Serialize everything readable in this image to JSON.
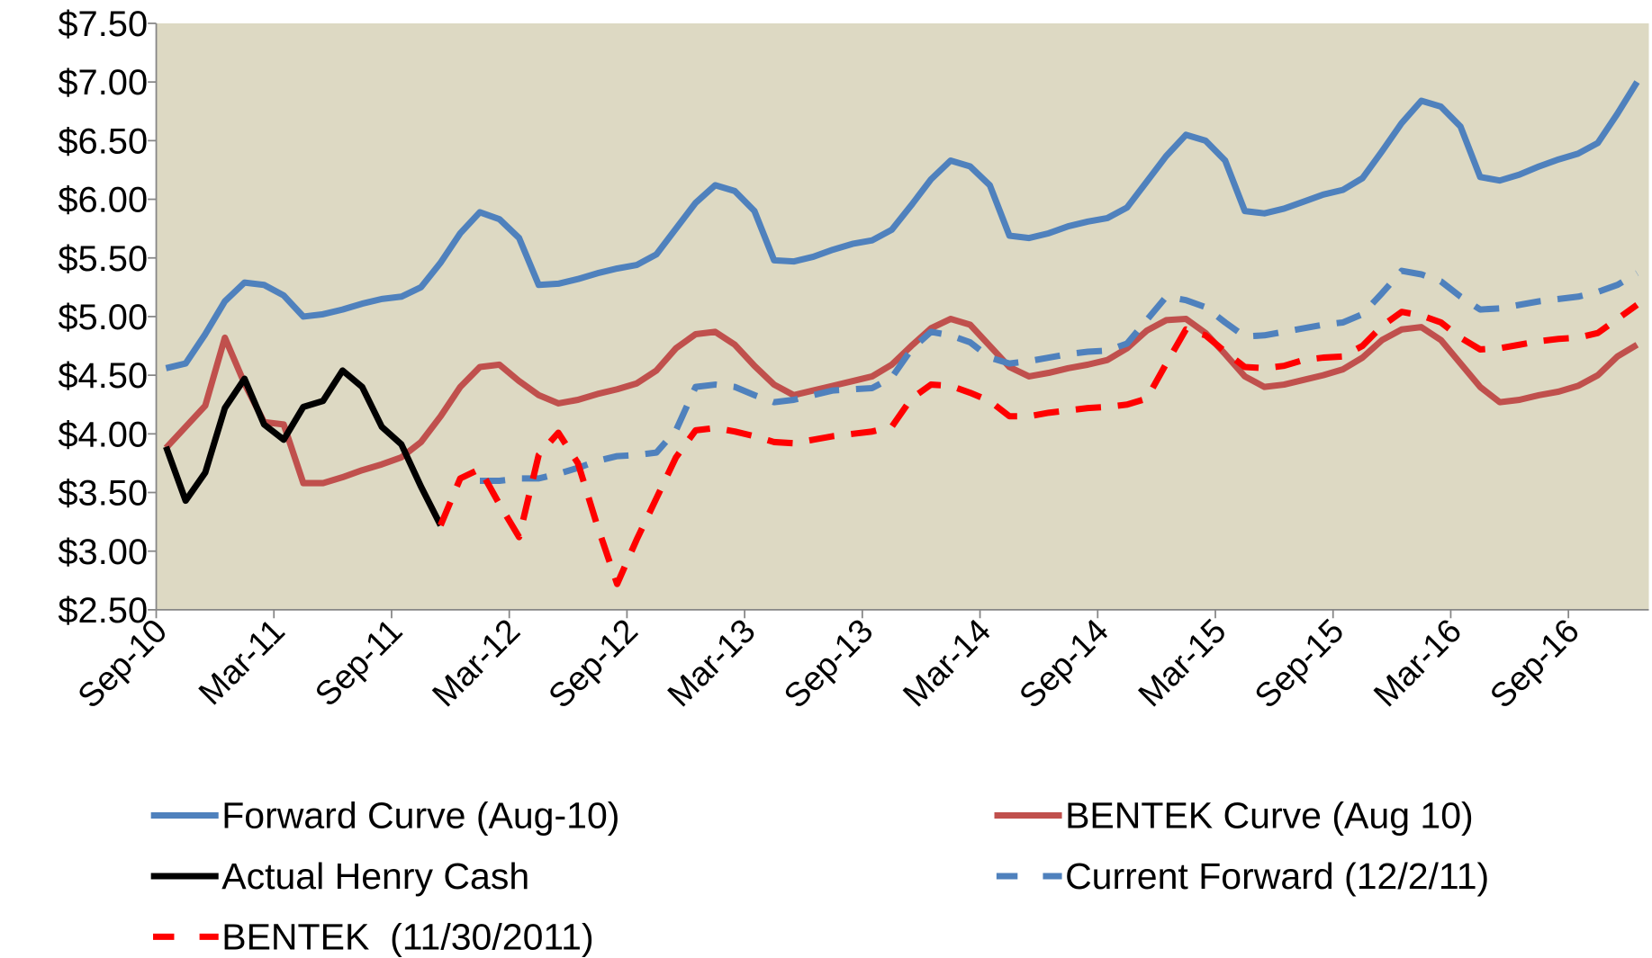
{
  "chart_data": {
    "type": "line",
    "categories": [
      "Sep-10",
      null,
      null,
      null,
      null,
      null,
      "Mar-11",
      null,
      null,
      null,
      null,
      null,
      "Sep-11",
      null,
      null,
      null,
      null,
      null,
      "Mar-12",
      null,
      null,
      null,
      null,
      null,
      "Sep-12",
      null,
      null,
      null,
      null,
      null,
      "Mar-13",
      null,
      null,
      null,
      null,
      null,
      "Sep-13",
      null,
      null,
      null,
      null,
      null,
      "Mar-14",
      null,
      null,
      null,
      null,
      null,
      "Sep-14",
      null,
      null,
      null,
      null,
      null,
      "Mar-15",
      null,
      null,
      null,
      null,
      null,
      "Sep-15",
      null,
      null,
      null,
      null,
      null,
      "Mar-16",
      null,
      null,
      null,
      null,
      null,
      "Sep-16",
      null,
      null,
      null
    ],
    "ylim": [
      2.5,
      7.5
    ],
    "yticks": [
      {
        "value": 2.5,
        "label": "$2.50"
      },
      {
        "value": 3,
        "label": "$3.00"
      },
      {
        "value": 3.5,
        "label": "$3.50"
      },
      {
        "value": 4,
        "label": "$4.00"
      },
      {
        "value": 4.5,
        "label": "$4.50"
      },
      {
        "value": 5,
        "label": "$5.00"
      },
      {
        "value": 5.5,
        "label": "$5.50"
      },
      {
        "value": 6,
        "label": "$6.00"
      },
      {
        "value": 6.5,
        "label": "$6.50"
      },
      {
        "value": 7,
        "label": "$7.00"
      },
      {
        "value": 7.5,
        "label": "$7.50"
      }
    ],
    "plot_background": "#ddd9c3",
    "series": [
      {
        "name": "Forward Curve (Aug-10)",
        "color": "#4f81bd",
        "dashed": false,
        "values": [
          4.56,
          4.6,
          4.85,
          5.13,
          5.29,
          5.27,
          5.18,
          5.0,
          5.02,
          5.06,
          5.11,
          5.15,
          5.17,
          5.25,
          5.46,
          5.71,
          5.89,
          5.83,
          5.67,
          5.27,
          5.28,
          5.32,
          5.37,
          5.41,
          5.44,
          5.53,
          5.75,
          5.97,
          6.12,
          6.07,
          5.9,
          5.48,
          5.47,
          5.51,
          5.57,
          5.62,
          5.65,
          5.74,
          5.95,
          6.17,
          6.33,
          6.28,
          6.12,
          5.69,
          5.67,
          5.71,
          5.77,
          5.81,
          5.84,
          5.93,
          6.15,
          6.37,
          6.55,
          6.5,
          6.33,
          5.9,
          5.88,
          5.92,
          5.98,
          6.04,
          6.08,
          6.18,
          6.41,
          6.65,
          6.84,
          6.79,
          6.62,
          6.19,
          6.16,
          6.21,
          6.28,
          6.34,
          6.39,
          6.48,
          6.73,
          7.0
        ]
      },
      {
        "name": "BENTEK Curve (Aug 10)",
        "color": "#c0504d",
        "dashed": false,
        "values": [
          3.88,
          4.06,
          4.24,
          4.82,
          4.43,
          4.1,
          4.08,
          3.58,
          3.58,
          3.63,
          3.69,
          3.74,
          3.8,
          3.93,
          4.15,
          4.4,
          4.57,
          4.59,
          4.45,
          4.33,
          4.26,
          4.29,
          4.34,
          4.38,
          4.43,
          4.54,
          4.73,
          4.85,
          4.87,
          4.76,
          4.58,
          4.42,
          4.33,
          4.37,
          4.41,
          4.45,
          4.49,
          4.59,
          4.75,
          4.9,
          4.98,
          4.93,
          4.75,
          4.57,
          4.49,
          4.52,
          4.56,
          4.59,
          4.63,
          4.73,
          4.88,
          4.97,
          4.98,
          4.86,
          4.68,
          4.49,
          4.4,
          4.42,
          4.46,
          4.5,
          4.55,
          4.65,
          4.8,
          4.89,
          4.91,
          4.8,
          4.6,
          4.4,
          4.27,
          4.29,
          4.33,
          4.36,
          4.41,
          4.5,
          4.66,
          4.76
        ]
      },
      {
        "name": "Actual Henry Cash",
        "color": "#000000",
        "dashed": false,
        "values": [
          3.89,
          3.43,
          3.67,
          4.22,
          4.47,
          4.08,
          3.95,
          4.23,
          4.28,
          4.54,
          4.4,
          4.06,
          3.91,
          3.55,
          3.22,
          null,
          null,
          null,
          null,
          null,
          null,
          null,
          null,
          null,
          null,
          null,
          null,
          null,
          null,
          null,
          null,
          null,
          null,
          null,
          null,
          null,
          null,
          null,
          null,
          null,
          null,
          null,
          null,
          null,
          null,
          null,
          null,
          null,
          null,
          null,
          null,
          null,
          null,
          null,
          null,
          null,
          null,
          null,
          null,
          null,
          null,
          null,
          null,
          null,
          null,
          null,
          null,
          null,
          null,
          null,
          null,
          null,
          null,
          null,
          null,
          null
        ]
      },
      {
        "name": "Current Forward (12/2/11)",
        "color": "#4f81bd",
        "dashed": true,
        "values": [
          null,
          null,
          null,
          null,
          null,
          null,
          null,
          null,
          null,
          null,
          null,
          null,
          null,
          null,
          null,
          null,
          3.6,
          3.6,
          3.62,
          3.62,
          3.66,
          3.71,
          3.77,
          3.81,
          3.82,
          3.84,
          4.03,
          4.4,
          4.42,
          4.4,
          4.33,
          4.27,
          4.29,
          4.33,
          4.37,
          4.38,
          4.39,
          4.48,
          4.72,
          4.87,
          4.84,
          4.78,
          4.65,
          4.6,
          4.62,
          4.65,
          4.68,
          4.7,
          4.71,
          4.77,
          4.97,
          5.17,
          5.14,
          5.08,
          4.95,
          4.83,
          4.84,
          4.87,
          4.9,
          4.93,
          4.95,
          5.02,
          5.2,
          5.39,
          5.36,
          5.3,
          5.17,
          5.06,
          5.07,
          5.1,
          5.13,
          5.15,
          5.17,
          5.21,
          5.27,
          5.37
        ]
      },
      {
        "name": "BENTEK  (11/30/2011)",
        "color": "#ff0000",
        "dashed": true,
        "values": [
          null,
          null,
          null,
          null,
          null,
          null,
          null,
          null,
          null,
          null,
          null,
          null,
          null,
          null,
          3.22,
          3.62,
          3.7,
          3.4,
          3.12,
          3.82,
          4.01,
          3.75,
          3.21,
          2.72,
          3.1,
          3.45,
          3.8,
          4.03,
          4.05,
          4.02,
          3.98,
          3.93,
          3.92,
          3.95,
          3.98,
          4.0,
          4.02,
          4.06,
          4.3,
          4.42,
          4.41,
          4.35,
          4.28,
          4.15,
          4.15,
          4.18,
          4.2,
          4.22,
          4.23,
          4.25,
          4.3,
          4.6,
          4.89,
          4.84,
          4.7,
          4.57,
          4.56,
          4.58,
          4.63,
          4.65,
          4.66,
          4.75,
          4.92,
          5.04,
          5.01,
          4.95,
          4.82,
          4.72,
          4.73,
          4.76,
          4.79,
          4.81,
          4.82,
          4.86,
          4.98,
          5.1
        ]
      }
    ]
  }
}
